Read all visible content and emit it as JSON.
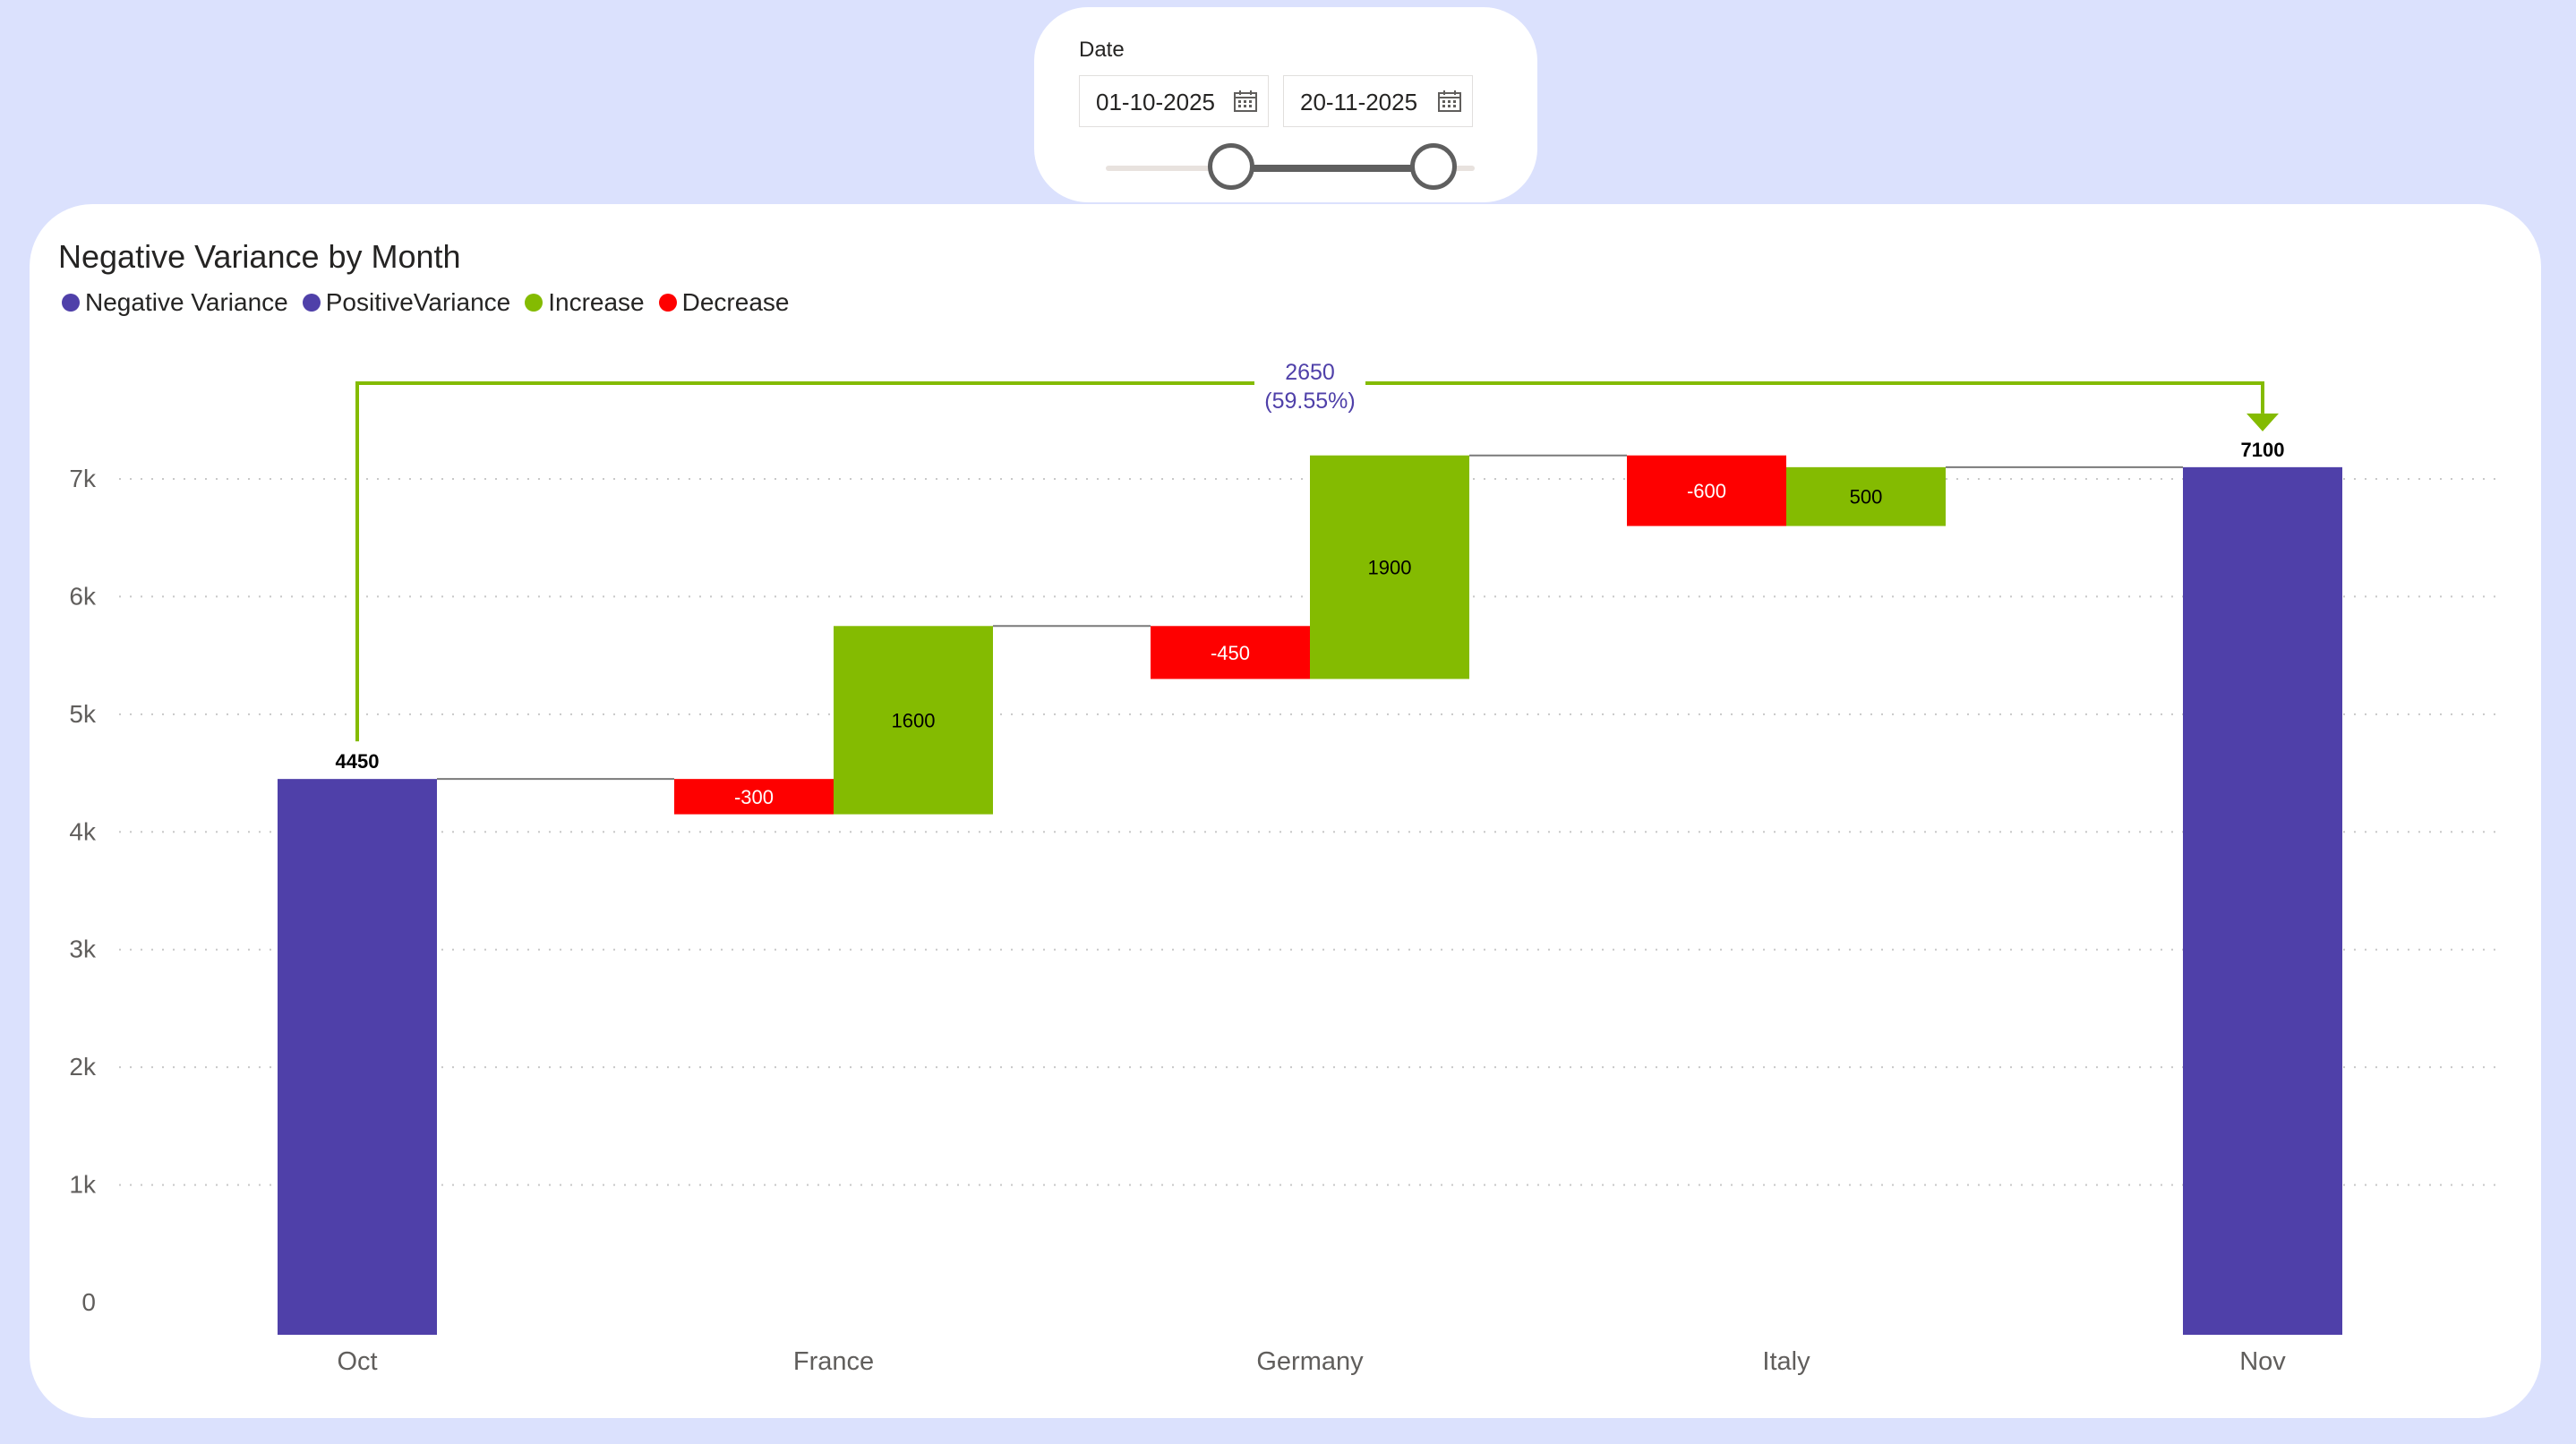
{
  "date_slicer": {
    "title": "Date",
    "start_date": "01-10-2025",
    "end_date": "20-11-2025"
  },
  "chart_data": {
    "type": "waterfall",
    "title": "Negative Variance by Month",
    "legend": [
      {
        "name": "Negative Variance",
        "color": "#4f40a9"
      },
      {
        "name": "PositiveVariance",
        "color": "#4f40a9"
      },
      {
        "name": "Increase",
        "color": "#84bb01"
      },
      {
        "name": "Decrease",
        "color": "#fe0000"
      }
    ],
    "categories": [
      "Oct",
      "France",
      "Germany",
      "Italy",
      "Nov"
    ],
    "start_total": {
      "category": "Oct",
      "value": 4450,
      "label": "4450"
    },
    "end_total": {
      "category": "Nov",
      "value": 7100,
      "label": "7100"
    },
    "steps": [
      {
        "category": "France",
        "kind": "Decrease",
        "value": -300,
        "label": "-300"
      },
      {
        "category": "France",
        "kind": "Increase",
        "value": 1600,
        "label": "1600"
      },
      {
        "category": "Germany",
        "kind": "Decrease",
        "value": -450,
        "label": "-450"
      },
      {
        "category": "Germany",
        "kind": "Increase",
        "value": 1900,
        "label": "1900"
      },
      {
        "category": "Italy",
        "kind": "Decrease",
        "value": -600,
        "label": "-600"
      },
      {
        "category": "Italy",
        "kind": "Increase",
        "value": 500,
        "label": "500"
      }
    ],
    "variance_annotation": {
      "value": "2650",
      "percent": "(59.55%)"
    },
    "yticks": [
      "0",
      "1k",
      "2k",
      "3k",
      "4k",
      "5k",
      "6k",
      "7k"
    ],
    "ylim": [
      0,
      7300
    ],
    "grid": true,
    "legend_position": "top-left"
  }
}
